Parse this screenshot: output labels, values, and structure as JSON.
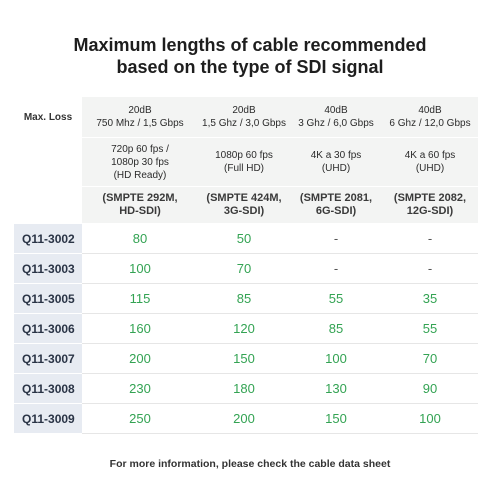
{
  "title": {
    "line1": "Maximum lengths of cable recommended",
    "line2": "based on the type of SDI signal"
  },
  "table": {
    "row_label_loss": "Max. Loss",
    "columns": [
      {
        "loss": "20dB",
        "bandwidth": "750 Mhz / 1,5 Gbps",
        "resolution_lines": [
          "720p 60 fps /",
          "1080p 30 fps",
          "(HD Ready)"
        ],
        "smpte_lines": [
          "(SMPTE 292M,",
          "HD-SDI)"
        ]
      },
      {
        "loss": "20dB",
        "bandwidth": "1,5 Ghz / 3,0 Gbps",
        "resolution_lines": [
          "1080p 60 fps",
          "(Full HD)"
        ],
        "smpte_lines": [
          "(SMPTE 424M,",
          "3G-SDI)"
        ]
      },
      {
        "loss": "40dB",
        "bandwidth": "3 Ghz / 6,0 Gbps",
        "resolution_lines": [
          "4K a 30 fps",
          "(UHD)"
        ],
        "smpte_lines": [
          "(SMPTE 2081,",
          "6G-SDI)"
        ]
      },
      {
        "loss": "40dB",
        "bandwidth": "6 Ghz / 12,0 Gbps",
        "resolution_lines": [
          "4K a 60 fps",
          "(UHD)"
        ],
        "smpte_lines": [
          "(SMPTE 2082,",
          "12G-SDI)"
        ]
      }
    ],
    "rows": [
      {
        "model": "Q11-3002",
        "values": [
          "80",
          "50",
          "-",
          "-"
        ]
      },
      {
        "model": "Q11-3003",
        "values": [
          "100",
          "70",
          "-",
          "-"
        ]
      },
      {
        "model": "Q11-3005",
        "values": [
          "115",
          "85",
          "55",
          "35"
        ]
      },
      {
        "model": "Q11-3006",
        "values": [
          "160",
          "120",
          "85",
          "55"
        ]
      },
      {
        "model": "Q11-3007",
        "values": [
          "200",
          "150",
          "100",
          "70"
        ]
      },
      {
        "model": "Q11-3008",
        "values": [
          "230",
          "180",
          "130",
          "90"
        ]
      },
      {
        "model": "Q11-3009",
        "values": [
          "250",
          "200",
          "150",
          "100"
        ]
      }
    ]
  },
  "footnote": "For more information, please check the cable data sheet",
  "colors": {
    "value_green": "#33a353",
    "model_cell_bg": "#e7ebf2",
    "header_cell_bg": "#f3f4f3"
  }
}
